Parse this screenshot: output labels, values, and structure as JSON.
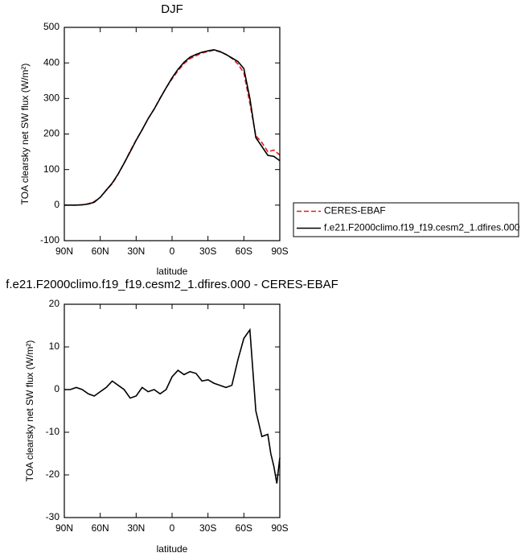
{
  "chart_data": [
    {
      "type": "line",
      "title": "DJF",
      "xlabel": "latitude",
      "ylabel": "TOA clearsky net SW flux (W/m²)",
      "x": [
        90,
        85,
        80,
        75,
        70,
        65,
        60,
        55,
        50,
        45,
        40,
        35,
        30,
        25,
        20,
        15,
        10,
        5,
        0,
        -5,
        -10,
        -15,
        -20,
        -25,
        -30,
        -35,
        -40,
        -45,
        -50,
        -55,
        -60,
        -65,
        -70,
        -75,
        -80,
        -85,
        -90
      ],
      "xlim": [
        90,
        -90
      ],
      "xticks": [
        {
          "value": 90,
          "label": "90N"
        },
        {
          "value": 60,
          "label": "60N"
        },
        {
          "value": 30,
          "label": "30N"
        },
        0,
        {
          "value": -30,
          "label": "30S"
        },
        {
          "value": -60,
          "label": "60S"
        },
        {
          "value": -90,
          "label": "90S"
        }
      ],
      "ylim": [
        -100,
        500
      ],
      "yticks": [
        -100,
        0,
        100,
        200,
        300,
        400,
        500
      ],
      "legend": "right",
      "series": [
        {
          "name": "CERES-EBAF",
          "color": "#e41a1c",
          "style": "dashed",
          "values": [
            0,
            0,
            0,
            1,
            4,
            10,
            22,
            42,
            60,
            87,
            118,
            152,
            183,
            212,
            243,
            270,
            301,
            330,
            355,
            378,
            398,
            412,
            420,
            428,
            432,
            436,
            431,
            424,
            413,
            397,
            372,
            286,
            195,
            176,
            150,
            155,
            141
          ]
        },
        {
          "name": "f.e21.F2000climo.f19_f19.cesm2_1.dfires.000",
          "color": "#000000",
          "style": "solid",
          "values": [
            0,
            0,
            0,
            1,
            3,
            8,
            22,
            42,
            62,
            88,
            118,
            150,
            182,
            212,
            243,
            270,
            300,
            330,
            358,
            382,
            402,
            416,
            424,
            430,
            434,
            437,
            432,
            424,
            414,
            404,
            384,
            300,
            190,
            165,
            140,
            137,
            125
          ]
        }
      ]
    },
    {
      "type": "line",
      "title": "f.e21.F2000climo.f19_f19.cesm2_1.dfires.000 - CERES-EBAF",
      "xlabel": "latitude",
      "ylabel": "TOA clearsky net SW flux (W/m²)",
      "x": [
        90,
        85,
        80,
        75,
        70,
        65,
        60,
        55,
        50,
        45,
        40,
        35,
        30,
        25,
        20,
        15,
        10,
        5,
        0,
        -5,
        -10,
        -15,
        -20,
        -25,
        -30,
        -35,
        -40,
        -45,
        -50,
        -55,
        -60,
        -65,
        -70,
        -75,
        -80,
        -82.5,
        -85,
        -87.5,
        -90
      ],
      "xlim": [
        90,
        -90
      ],
      "xticks": [
        {
          "value": 90,
          "label": "90N"
        },
        {
          "value": 60,
          "label": "60N"
        },
        {
          "value": 30,
          "label": "30N"
        },
        0,
        {
          "value": -30,
          "label": "30S"
        },
        {
          "value": -60,
          "label": "60S"
        },
        {
          "value": -90,
          "label": "90S"
        }
      ],
      "ylim": [
        -30,
        20
      ],
      "yticks": [
        -30,
        -20,
        -10,
        0,
        10,
        20
      ],
      "color": "#000000",
      "values": [
        0,
        0,
        0.5,
        0,
        -1,
        -1.5,
        -0.5,
        0.5,
        2,
        1,
        0,
        -2,
        -1.5,
        0.5,
        -0.5,
        0,
        -1,
        0,
        3,
        4.5,
        3.5,
        4.2,
        3.8,
        2,
        2.3,
        1.5,
        1,
        0.5,
        1,
        7,
        12,
        14,
        -5,
        -11,
        -10.5,
        -15,
        -18,
        -22,
        -16
      ]
    }
  ]
}
